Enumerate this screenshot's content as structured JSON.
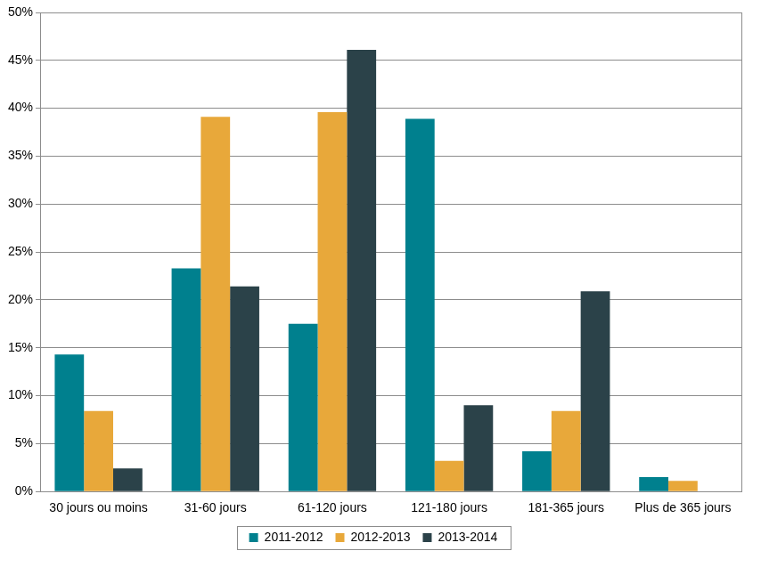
{
  "chart_data": {
    "type": "bar",
    "categories": [
      "30 jours ou moins",
      "31-60 jours",
      "61-120 jours",
      "121-180 jours",
      "181-365 jours",
      "Plus de 365 jours"
    ],
    "series": [
      {
        "name": "2011-2012",
        "color": "#00808e",
        "values": [
          14.3,
          23.3,
          17.5,
          38.9,
          4.2,
          1.5
        ]
      },
      {
        "name": "2012-2013",
        "color": "#e8a83a",
        "values": [
          8.4,
          39.1,
          39.6,
          3.2,
          8.4,
          1.1
        ]
      },
      {
        "name": "2013-2014",
        "color": "#2b4249",
        "values": [
          2.4,
          21.4,
          46.1,
          9.0,
          20.9,
          0
        ]
      }
    ],
    "ylim": [
      0,
      50
    ],
    "yticks": [
      {
        "value": 0,
        "label": "0%"
      },
      {
        "value": 5,
        "label": "5%"
      },
      {
        "value": 10,
        "label": "10%"
      },
      {
        "value": 15,
        "label": "15%"
      },
      {
        "value": 20,
        "label": "20%"
      },
      {
        "value": 25,
        "label": "25%"
      },
      {
        "value": 30,
        "label": "30%"
      },
      {
        "value": 35,
        "label": "35%"
      },
      {
        "value": 40,
        "label": "40%"
      },
      {
        "value": 45,
        "label": "45%"
      },
      {
        "value": 50,
        "label": "50%"
      }
    ],
    "grid": true,
    "legend": "bottom"
  }
}
